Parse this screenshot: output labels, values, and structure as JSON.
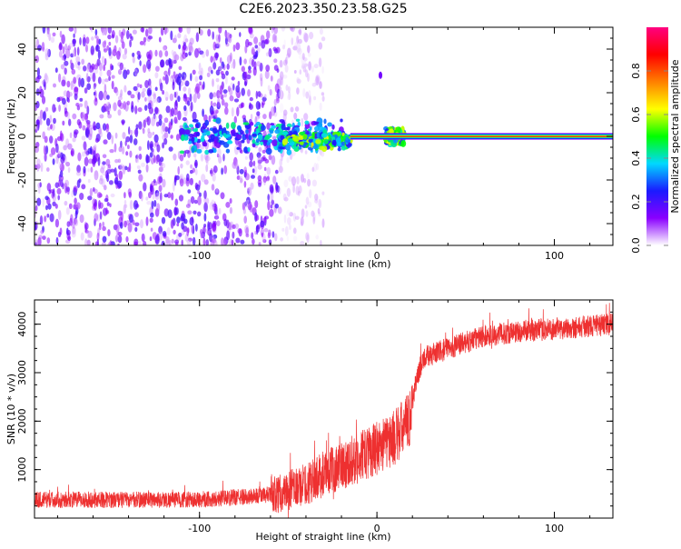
{
  "title": "C2E6.2023.350.23.58.G25",
  "chart_data": [
    {
      "type": "heatmap",
      "xlabel": "Height of straight line (km)",
      "ylabel": "Frequency (Hz)",
      "xlim": [
        -193,
        133
      ],
      "ylim": [
        -50,
        50
      ],
      "xticks": [
        -100,
        0,
        100
      ],
      "xtick_labels": [
        "-100",
        "0",
        "100"
      ],
      "yticks": [
        -40,
        -20,
        0,
        20,
        40
      ],
      "ytick_labels": [
        "-40",
        "-20",
        "0",
        "20",
        "40"
      ],
      "colorbar": {
        "label": "Normalized spectral amplitude",
        "range": [
          0,
          1
        ],
        "ticks": [
          0.0,
          0.2,
          0.4,
          0.6,
          0.8
        ],
        "tick_labels": [
          "0.0",
          "0.2",
          "0.4",
          "0.6",
          "0.8"
        ],
        "colors": [
          "#ffffff",
          "#8a00ff",
          "#1a1aff",
          "#00d8ff",
          "#00ff00",
          "#ffff00",
          "#ff8000",
          "#ff0000",
          "#ff0080"
        ]
      },
      "features": [
        {
          "kind": "scattered_noise",
          "x_range": [
            -193,
            -55
          ],
          "y_range": [
            -50,
            50
          ],
          "amplitude": 0.15
        },
        {
          "kind": "sparse_noise",
          "x_range": [
            -55,
            -30
          ],
          "y_range": [
            -50,
            50
          ],
          "amplitude": 0.05
        },
        {
          "kind": "cluster",
          "x_range": [
            -110,
            -20
          ],
          "y_range": [
            -8,
            8
          ],
          "amplitude": 0.35
        },
        {
          "kind": "cluster",
          "x_range": [
            -55,
            -15
          ],
          "y_range": [
            -6,
            2
          ],
          "amplitude": 0.5
        },
        {
          "kind": "cluster",
          "x_range": [
            5,
            15
          ],
          "y_range": [
            -4,
            4
          ],
          "amplitude": 0.5
        },
        {
          "kind": "band",
          "x_range": [
            -15,
            133
          ],
          "y_range": [
            -1.5,
            1.5
          ],
          "amplitude": 0.85
        },
        {
          "kind": "point",
          "x": 2,
          "y": 28,
          "amplitude": 0.15
        }
      ]
    },
    {
      "type": "line",
      "xlabel": "Height of straight line (km)",
      "ylabel": "SNR (10 * v/v)",
      "xlim": [
        -193,
        133
      ],
      "ylim": [
        0,
        4500
      ],
      "xticks": [
        -100,
        0,
        100
      ],
      "xtick_labels": [
        "-100",
        "0",
        "100"
      ],
      "yticks": [
        1000,
        2000,
        3000,
        4000
      ],
      "ytick_labels": [
        "1000",
        "2000",
        "3000",
        "4000"
      ],
      "line_color": "#ee3030",
      "trend": {
        "x": [
          -193,
          -150,
          -100,
          -70,
          -55,
          -40,
          -25,
          -10,
          0,
          10,
          18,
          22,
          26,
          40,
          60,
          80,
          100,
          133
        ],
        "y": [
          380,
          380,
          380,
          450,
          500,
          700,
          1000,
          1250,
          1450,
          1650,
          2000,
          2800,
          3300,
          3500,
          3750,
          3850,
          3900,
          4000
        ]
      }
    }
  ]
}
